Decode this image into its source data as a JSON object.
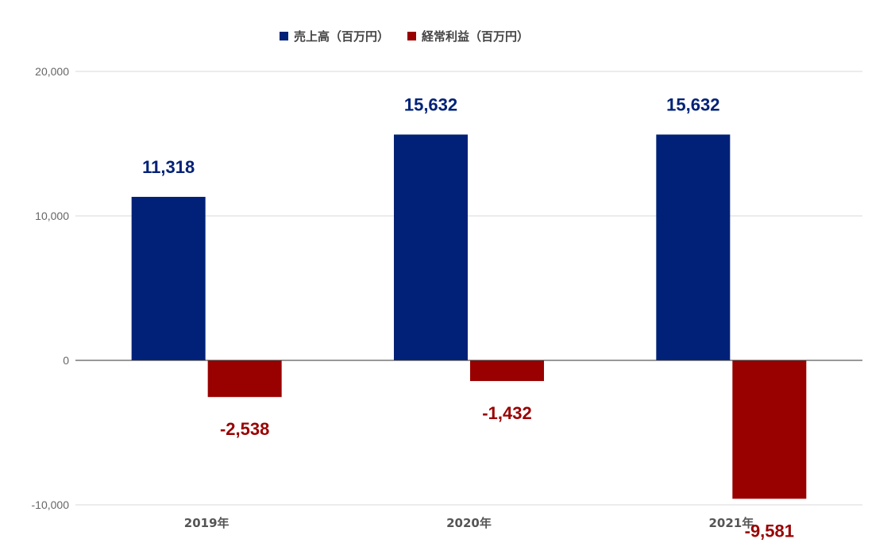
{
  "chart_data": {
    "type": "bar",
    "title": "",
    "xlabel": "",
    "ylabel": "",
    "categories": [
      "2019年",
      "2020年",
      "2021年"
    ],
    "series": [
      {
        "name": "売上高（百万円）",
        "color": "#002177",
        "values": [
          11318,
          15632,
          15632
        ],
        "labels": [
          "11,318",
          "15,632",
          "15,632"
        ]
      },
      {
        "name": "経常利益（百万円）",
        "color": "#990000",
        "values": [
          -2538,
          -1432,
          -9581
        ],
        "labels": [
          "-2,538",
          "-1,432",
          "-9,581"
        ]
      }
    ],
    "ylim": [
      -10000,
      20000
    ],
    "yticks": [
      -10000,
      0,
      10000,
      20000
    ],
    "ytick_labels": [
      "-10,000",
      "0",
      "10,000",
      "20,000"
    ],
    "grid": true,
    "legend_position": "top"
  }
}
